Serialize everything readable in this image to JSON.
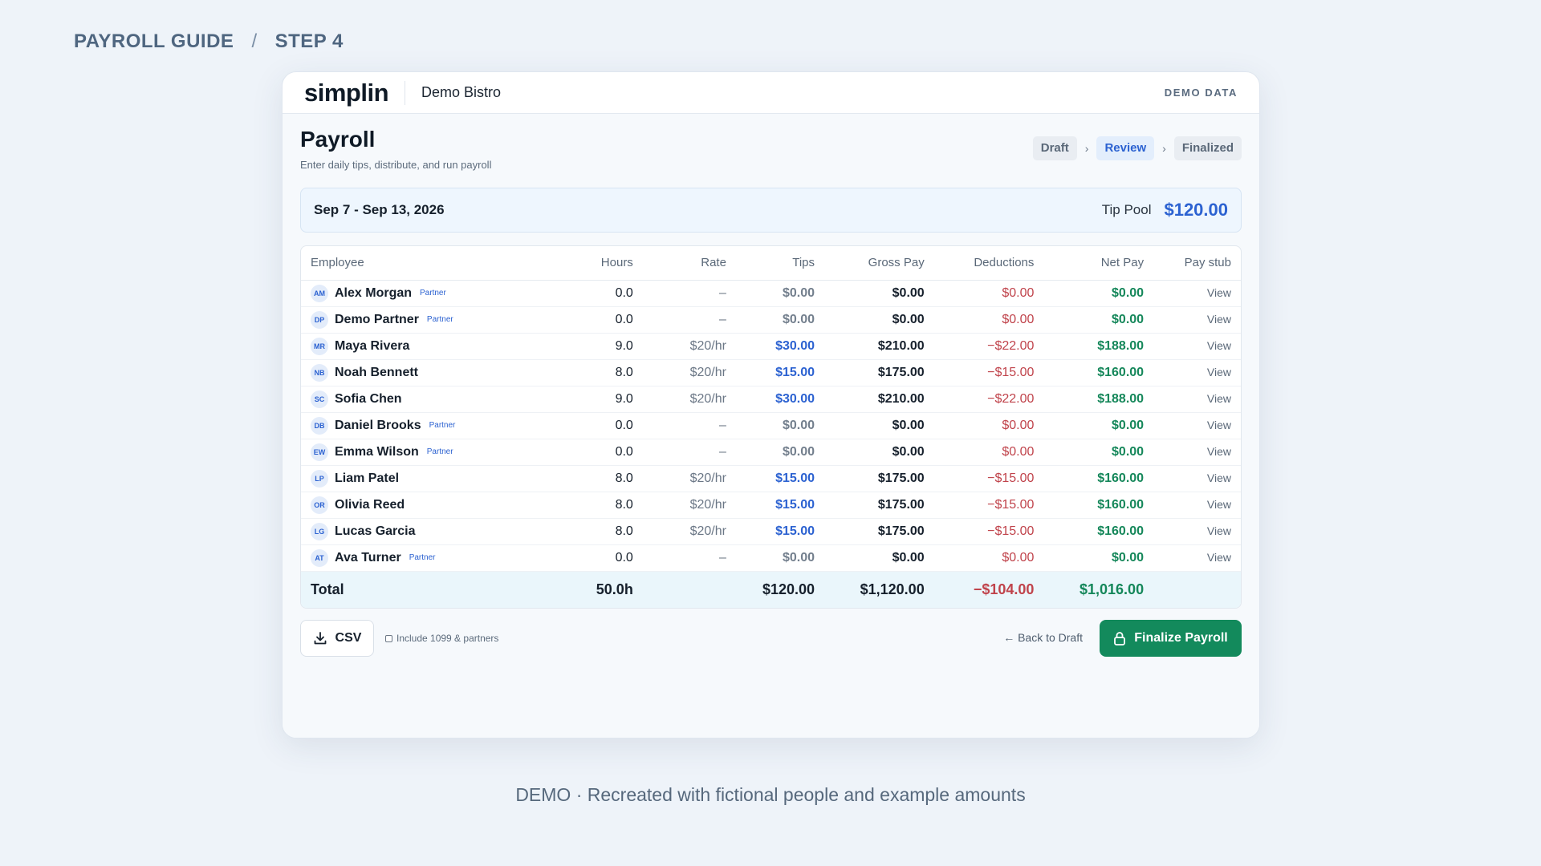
{
  "guide": {
    "title": "PAYROLL GUIDE",
    "separator": "/",
    "step": "STEP 4"
  },
  "app": {
    "logo": "simplin",
    "org": "Demo Bistro",
    "demo_tag": "DEMO DATA"
  },
  "page": {
    "title": "Payroll",
    "subtitle": "Enter daily tips, distribute, and run payroll"
  },
  "steps": [
    {
      "label": "Draft",
      "active": false
    },
    {
      "label": "Review",
      "active": true
    },
    {
      "label": "Finalized",
      "active": false
    }
  ],
  "step_sep": "›",
  "period": {
    "range": "Sep 7 - Sep 13, 2026",
    "tip_pool_label": "Tip Pool",
    "tip_pool_value": "$120.00"
  },
  "table": {
    "columns": [
      "Employee",
      "Hours",
      "Rate",
      "Tips",
      "Gross Pay",
      "Deductions",
      "Net Pay",
      "Pay stub"
    ],
    "rows": [
      {
        "initials": "AM",
        "name": "Alex Morgan",
        "partner": "Partner",
        "hours": "0.0",
        "rate": "–",
        "tips": "$0.00",
        "tips_pos": false,
        "gross": "$0.00",
        "deductions": "$0.00",
        "net": "$0.00",
        "stub": "View"
      },
      {
        "initials": "DP",
        "name": "Demo Partner",
        "partner": "Partner",
        "hours": "0.0",
        "rate": "–",
        "tips": "$0.00",
        "tips_pos": false,
        "gross": "$0.00",
        "deductions": "$0.00",
        "net": "$0.00",
        "stub": "View"
      },
      {
        "initials": "MR",
        "name": "Maya Rivera",
        "partner": "",
        "hours": "9.0",
        "rate": "$20/hr",
        "tips": "$30.00",
        "tips_pos": true,
        "gross": "$210.00",
        "deductions": "−$22.00",
        "net": "$188.00",
        "stub": "View"
      },
      {
        "initials": "NB",
        "name": "Noah Bennett",
        "partner": "",
        "hours": "8.0",
        "rate": "$20/hr",
        "tips": "$15.00",
        "tips_pos": true,
        "gross": "$175.00",
        "deductions": "−$15.00",
        "net": "$160.00",
        "stub": "View"
      },
      {
        "initials": "SC",
        "name": "Sofia Chen",
        "partner": "",
        "hours": "9.0",
        "rate": "$20/hr",
        "tips": "$30.00",
        "tips_pos": true,
        "gross": "$210.00",
        "deductions": "−$22.00",
        "net": "$188.00",
        "stub": "View"
      },
      {
        "initials": "DB",
        "name": "Daniel Brooks",
        "partner": "Partner",
        "hours": "0.0",
        "rate": "–",
        "tips": "$0.00",
        "tips_pos": false,
        "gross": "$0.00",
        "deductions": "$0.00",
        "net": "$0.00",
        "stub": "View"
      },
      {
        "initials": "EW",
        "name": "Emma Wilson",
        "partner": "Partner",
        "hours": "0.0",
        "rate": "–",
        "tips": "$0.00",
        "tips_pos": false,
        "gross": "$0.00",
        "deductions": "$0.00",
        "net": "$0.00",
        "stub": "View"
      },
      {
        "initials": "LP",
        "name": "Liam Patel",
        "partner": "",
        "hours": "8.0",
        "rate": "$20/hr",
        "tips": "$15.00",
        "tips_pos": true,
        "gross": "$175.00",
        "deductions": "−$15.00",
        "net": "$160.00",
        "stub": "View"
      },
      {
        "initials": "OR",
        "name": "Olivia Reed",
        "partner": "",
        "hours": "8.0",
        "rate": "$20/hr",
        "tips": "$15.00",
        "tips_pos": true,
        "gross": "$175.00",
        "deductions": "−$15.00",
        "net": "$160.00",
        "stub": "View"
      },
      {
        "initials": "LG",
        "name": "Lucas Garcia",
        "partner": "",
        "hours": "8.0",
        "rate": "$20/hr",
        "tips": "$15.00",
        "tips_pos": true,
        "gross": "$175.00",
        "deductions": "−$15.00",
        "net": "$160.00",
        "stub": "View"
      },
      {
        "initials": "AT",
        "name": "Ava Turner",
        "partner": "Partner",
        "hours": "0.0",
        "rate": "–",
        "tips": "$0.00",
        "tips_pos": false,
        "gross": "$0.00",
        "deductions": "$0.00",
        "net": "$0.00",
        "stub": "View"
      }
    ],
    "total": {
      "label": "Total",
      "hours": "50.0h",
      "tips": "$120.00",
      "gross": "$1,120.00",
      "deductions": "−$104.00",
      "net": "$1,016.00"
    }
  },
  "footer": {
    "csv_label": "CSV",
    "include_label": "Include 1099 & partners",
    "back_label": "← Back to Draft",
    "finalize_label": "Finalize Payroll"
  },
  "caption": "DEMO · Recreated with fictional people and example amounts",
  "colors": {
    "primary_blue": "#2c62d1",
    "success_green": "#138a5c",
    "danger_red": "#c0434b"
  }
}
